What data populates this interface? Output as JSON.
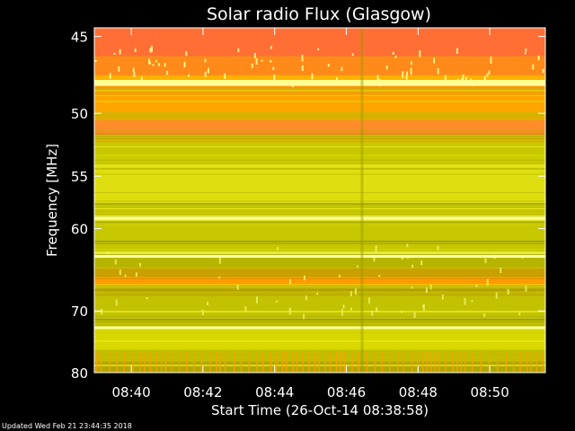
{
  "chart_data": {
    "type": "heatmap",
    "title": "Solar radio Flux (Glasgow)",
    "xlabel": "Start Time (26-Oct-14 08:38:58)",
    "ylabel": "Frequency [MHz]",
    "x_tick_labels": [
      "08:40",
      "08:42",
      "08:44",
      "08:46",
      "08:48",
      "08:50"
    ],
    "x_ticks_minutes": [
      40,
      42,
      44,
      46,
      48,
      50
    ],
    "x_range_minutes": [
      38.97,
      51.55
    ],
    "y_tick_labels": [
      "45",
      "50",
      "55",
      "60",
      "70",
      "80"
    ],
    "y_ticks_mhz": [
      45,
      50,
      55,
      60,
      70,
      80
    ],
    "y_range_mhz": [
      44.5,
      80
    ],
    "y_scale": "reciprocal",
    "colormap": [
      "#8a8a00",
      "#b3b300",
      "#dede00",
      "#ffff33",
      "#ffffb0",
      "#ffa000",
      "#ff7a33"
    ],
    "bands": [
      {
        "from": 44.5,
        "to": 46.2,
        "color": "#ff6f35"
      },
      {
        "from": 46.2,
        "to": 47.4,
        "color": "#ff8a1a"
      },
      {
        "from": 47.4,
        "to": 47.7,
        "color": "#ffb000"
      },
      {
        "from": 47.7,
        "to": 48.1,
        "color": "#ffff90"
      },
      {
        "from": 48.1,
        "to": 48.6,
        "color": "#ff9a10"
      },
      {
        "from": 48.6,
        "to": 49.9,
        "color": "#ffa500"
      },
      {
        "from": 49.9,
        "to": 50.5,
        "color": "#e0b000"
      },
      {
        "from": 50.5,
        "to": 51.6,
        "color": "#ff8c28"
      },
      {
        "from": 51.6,
        "to": 52.2,
        "color": "#d8b800"
      },
      {
        "from": 52.2,
        "to": 54.0,
        "color": "#c8c800"
      },
      {
        "from": 54.0,
        "to": 57.5,
        "color": "#dede10"
      },
      {
        "from": 57.5,
        "to": 58.7,
        "color": "#c5c500"
      },
      {
        "from": 58.7,
        "to": 59.1,
        "color": "#ffff50"
      },
      {
        "from": 59.1,
        "to": 62.5,
        "color": "#c7c700"
      },
      {
        "from": 62.5,
        "to": 63.0,
        "color": "#eaea40"
      },
      {
        "from": 63.0,
        "to": 64.4,
        "color": "#b5b500"
      },
      {
        "from": 64.4,
        "to": 65.5,
        "color": "#c8a000"
      },
      {
        "from": 65.5,
        "to": 66.6,
        "color": "#ff9a00"
      },
      {
        "from": 66.6,
        "to": 68.0,
        "color": "#c0b000"
      },
      {
        "from": 68.0,
        "to": 72.5,
        "color": "#c2c200"
      },
      {
        "from": 72.5,
        "to": 76.0,
        "color": "#d8d800"
      },
      {
        "from": 76.0,
        "to": 78.0,
        "color": "#c0c000"
      },
      {
        "from": 78.0,
        "to": 80.0,
        "color": "#b0a800"
      }
    ],
    "bright_lines_mhz": [
      47.9,
      58.9,
      63.0,
      72.4
    ],
    "data_gap_minute": 46.4,
    "grid": false
  },
  "footer": {
    "updated_text": "Updated Wed Feb 21 23:44:35 2018"
  }
}
